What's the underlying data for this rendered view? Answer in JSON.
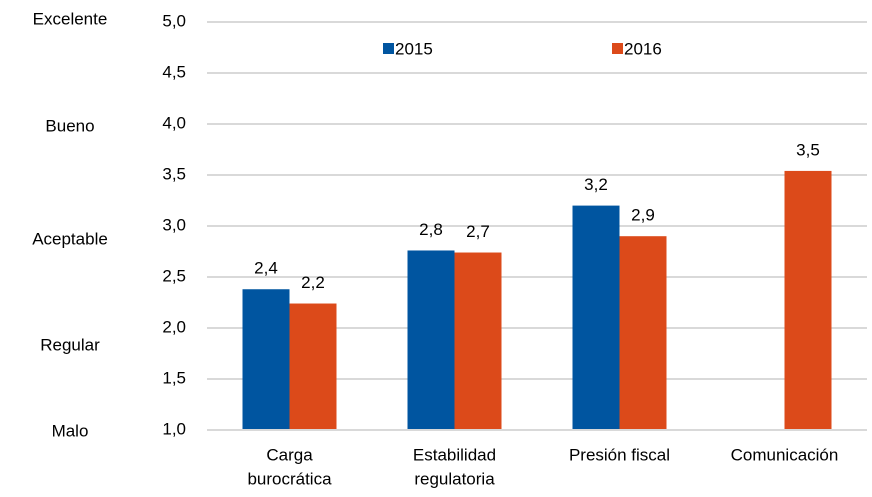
{
  "chart_data": {
    "type": "bar",
    "categories": [
      [
        "Carga",
        "burocrática"
      ],
      [
        "Estabilidad",
        "regulatoria"
      ],
      [
        "Presión fiscal"
      ],
      [
        "Comunicación"
      ]
    ],
    "series": [
      {
        "name": "2015",
        "color": "#0055a0",
        "values": [
          2.38,
          2.76,
          3.2,
          null
        ],
        "value_labels": [
          "2,4",
          "2,8",
          "3,2",
          null
        ]
      },
      {
        "name": "2016",
        "color": "#dc4a1a",
        "values": [
          2.24,
          2.74,
          2.9,
          3.54
        ],
        "value_labels": [
          "2,2",
          "2,7",
          "2,9",
          "3,5"
        ]
      }
    ],
    "ylim": [
      1,
      5
    ],
    "yticks": [
      {
        "value": 1,
        "label": "1,0"
      },
      {
        "value": 1.5,
        "label": "1,5"
      },
      {
        "value": 2,
        "label": "2,0"
      },
      {
        "value": 2.5,
        "label": "2,5"
      },
      {
        "value": 3,
        "label": "3,0"
      },
      {
        "value": 3.5,
        "label": "3,5"
      },
      {
        "value": 4,
        "label": "4,0"
      },
      {
        "value": 4.5,
        "label": "4,5"
      },
      {
        "value": 5,
        "label": "5,0"
      }
    ],
    "rating_labels": [
      "Excelente",
      "Bueno",
      "Aceptable",
      "Regular",
      "Malo"
    ],
    "grid": true,
    "legend": "top"
  }
}
